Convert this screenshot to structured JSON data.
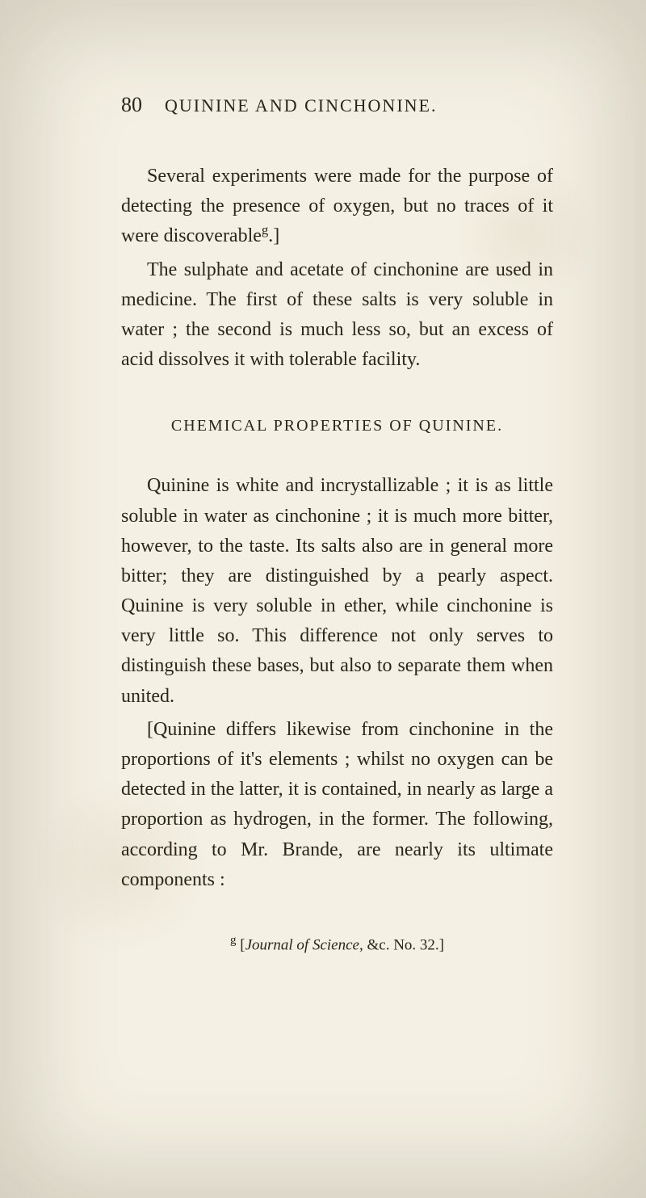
{
  "page_number": "80",
  "running_head": "QUININE AND CINCHONINE.",
  "paragraphs": [
    "Several experiments were made for the purpose of detecting the presence of oxygen, but no traces of it were discoverable",
    "The sulphate and acetate of cinchonine are used in medicine. The first of these salts is very soluble in water ; the second is much less so, but an excess of acid dissolves it with tolerable facility."
  ],
  "note_marker_1": "g",
  "bracket_close_1": ".]",
  "section_heading": "CHEMICAL PROPERTIES OF QUININE.",
  "section_paragraphs": [
    "Quinine is white and incrystallizable ; it is as little soluble in water as cinchonine ; it is much more bitter, however, to the taste. Its salts also are in general more bitter; they are distinguished by a pearly aspect. Quinine is very soluble in ether, while cinchonine is very little so. This difference not only serves to distinguish these bases, but also to separate them when united.",
    "[Quinine differs likewise from cinchonine in the proportions of it's elements ; whilst no oxygen can be detected in the latter, it is contained, in nearly as large a proportion as hydrogen, in the former. The following, according to Mr. Brande, are nearly its ultimate components :"
  ],
  "footnote_marker": "g",
  "footnote_text_prefix": " [",
  "footnote_italic": "Journal of Science,",
  "footnote_text_suffix": " &c. No. 32.]",
  "colors": {
    "background": "#f4f0e3",
    "text": "#2a2618"
  },
  "typography": {
    "body_fontsize": 24,
    "heading_fontsize": 20,
    "footnote_fontsize": 19,
    "pagenum_fontsize": 26,
    "running_head_fontsize": 22,
    "line_height": 1.55
  }
}
